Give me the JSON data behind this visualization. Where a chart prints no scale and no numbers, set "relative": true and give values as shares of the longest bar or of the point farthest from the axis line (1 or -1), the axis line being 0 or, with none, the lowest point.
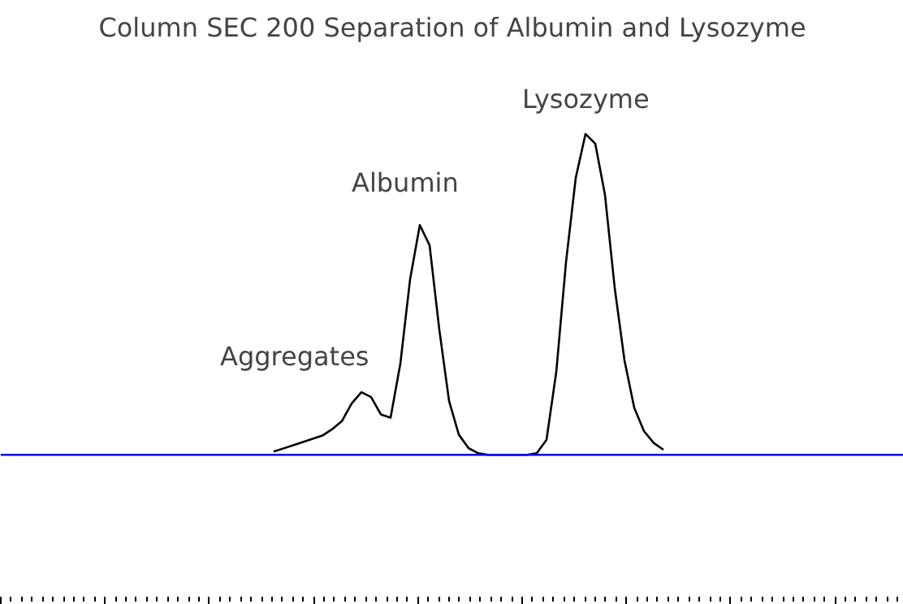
{
  "chart_data": {
    "type": "line",
    "title": "Column SEC 200 Separation of Albumin and Lysozyme",
    "relative": true,
    "grid": false,
    "categories": [
      null,
      null,
      null,
      null,
      null,
      null,
      null,
      null,
      null,
      null,
      null,
      null,
      null,
      null,
      null,
      null,
      null,
      null,
      null,
      null,
      null,
      null,
      null,
      null,
      null,
      null,
      null,
      null,
      null,
      null,
      null,
      null,
      null,
      null,
      null,
      null,
      null,
      null,
      null,
      null,
      null
    ],
    "series": [
      {
        "color": "#000000",
        "values": [
          0.01,
          0.02,
          0.03,
          0.04,
          0.05,
          0.06,
          0.08,
          0.105,
          0.16,
          0.195,
          0.18,
          0.126,
          0.116,
          0.284,
          0.547,
          0.716,
          0.653,
          0.39,
          0.168,
          0.063,
          0.021,
          0.005,
          0,
          0,
          0,
          0,
          0,
          0.005,
          0.047,
          0.258,
          0.6,
          0.863,
          1,
          0.97,
          0.81,
          0.52,
          0.295,
          0.147,
          0.074,
          0.037,
          0.016
        ]
      }
    ],
    "annotations": [
      "Aggregates",
      "Albumin",
      "Lysozyme"
    ]
  }
}
